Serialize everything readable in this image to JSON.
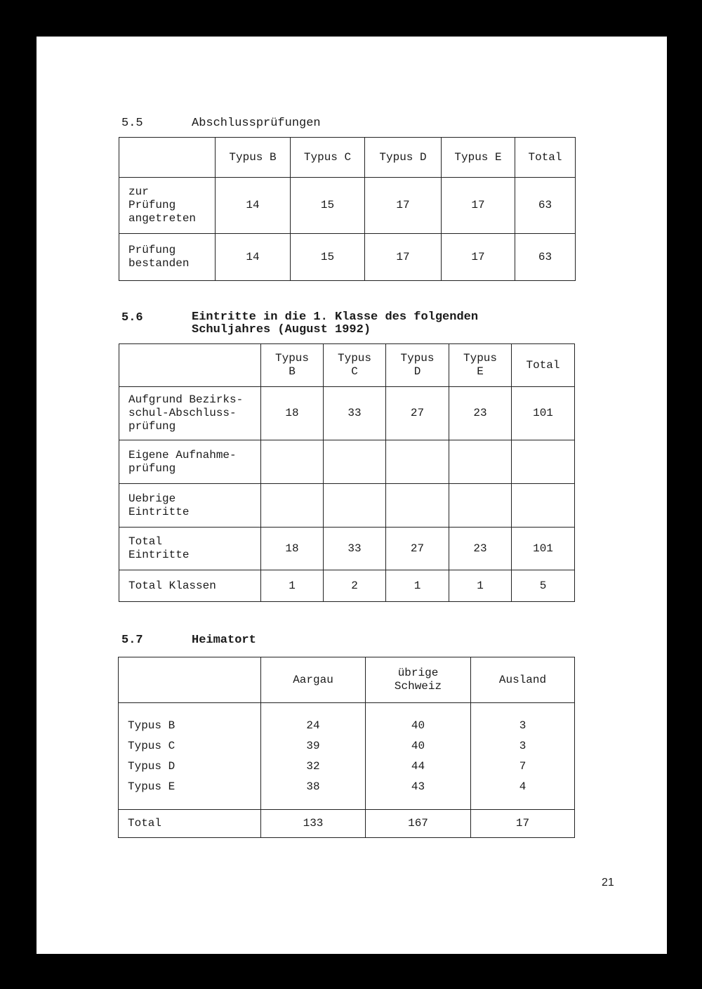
{
  "s55": {
    "num": "5.5",
    "title": "Abschlussprüfungen",
    "headers": [
      "Typus B",
      "Typus C",
      "Typus D",
      "Typus E",
      "Total"
    ],
    "rows": [
      {
        "label": "zur\nPrüfung\nangetreten",
        "values": [
          "14",
          "15",
          "17",
          "17",
          "63"
        ]
      },
      {
        "label": "Prüfung\nbestanden",
        "values": [
          "14",
          "15",
          "17",
          "17",
          "63"
        ]
      }
    ]
  },
  "s56": {
    "num": "5.6",
    "title": "Eintritte in die 1. Klasse des folgenden\nSchuljahres (August 1992)",
    "headers": [
      "Typus\nB",
      "Typus\nC",
      "Typus\nD",
      "Typus\nE",
      "Total"
    ],
    "rows": [
      {
        "label": "Aufgrund Bezirks-\nschul-Abschluss-\nprüfung",
        "values": [
          "18",
          "33",
          "27",
          "23",
          "101"
        ]
      },
      {
        "label": "Eigene Aufnahme-\nprüfung",
        "values": [
          "",
          "",
          "",
          "",
          ""
        ]
      },
      {
        "label": "Uebrige\nEintritte",
        "values": [
          "",
          "",
          "",
          "",
          ""
        ]
      },
      {
        "label": "Total\nEintritte",
        "values": [
          "18",
          "33",
          "27",
          "23",
          "101"
        ]
      },
      {
        "label": "Total Klassen",
        "values": [
          "1",
          "2",
          "1",
          "1",
          "5"
        ]
      }
    ]
  },
  "s57": {
    "num": "5.7",
    "title": "Heimatort",
    "headers": [
      "Aargau",
      "übrige\nSchweiz",
      "Ausland"
    ],
    "rows": [
      {
        "label": "Typus B",
        "values": [
          "24",
          "40",
          "3"
        ]
      },
      {
        "label": "Typus C",
        "values": [
          "39",
          "40",
          "3"
        ]
      },
      {
        "label": "Typus D",
        "values": [
          "32",
          "44",
          "7"
        ]
      },
      {
        "label": "Typus E",
        "values": [
          "38",
          "43",
          "4"
        ]
      }
    ],
    "total": {
      "label": "Total",
      "values": [
        "133",
        "167",
        "17"
      ]
    }
  },
  "page_number": "21"
}
